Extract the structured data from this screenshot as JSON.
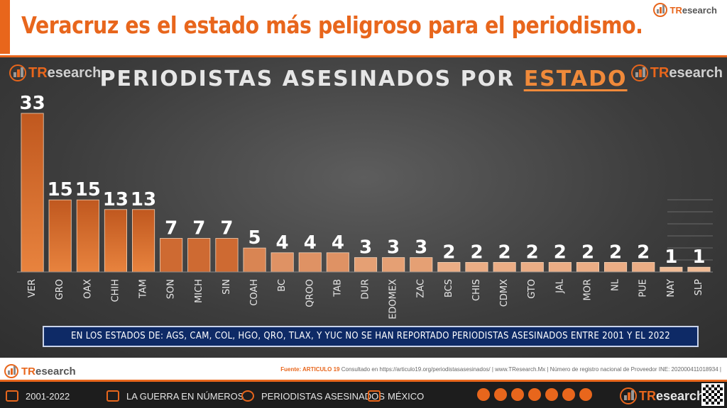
{
  "headline": "Veracruz es el estado más peligroso para el periodismo.",
  "brand": {
    "prefix": "TR",
    "suffix": "esearch"
  },
  "chart_data": {
    "type": "bar",
    "title_main": "PERIODISTAS ASESINADOS POR",
    "title_highlight": "ESTADO",
    "categories": [
      "VER",
      "GRO",
      "OAX",
      "CHIH",
      "TAM",
      "SON",
      "MICH",
      "SIN",
      "COAH",
      "BC",
      "QROO",
      "TAB",
      "DUR",
      "EDOMEX",
      "ZAC",
      "BCS",
      "CHIS",
      "CDMX",
      "GTO",
      "JAL",
      "MOR",
      "NL",
      "PUE",
      "NAY",
      "SLP"
    ],
    "values": [
      33,
      15,
      15,
      13,
      13,
      7,
      7,
      7,
      5,
      4,
      4,
      4,
      3,
      3,
      3,
      2,
      2,
      2,
      2,
      2,
      2,
      2,
      2,
      1,
      1
    ],
    "ylim": [
      0,
      33
    ],
    "grid": false,
    "legend": "none"
  },
  "note": "EN LOS ESTADOS DE: AGS, CAM, COL, HGO, QRO, TLAX, Y YUC NO SE HAN REPORTADO PERIODISTAS ASESINADOS ENTRE 2001 Y EL 2022",
  "source": {
    "label": "Fuente: ARTICULO 19",
    "text": "Consultado en https://articulo19.org/periodistasasesinados/ | www.TResearch.Mx | Número de registro nacional de Proveedor INE: 202000411018934 |"
  },
  "footer": {
    "items": [
      "2001-2022",
      "LA GUERRA EN NÚMEROS",
      "PERIODISTAS ASESINADOS",
      "MÉXICO"
    ]
  },
  "colors": {
    "accent": "#e8661c",
    "bar_top": "#c0581f",
    "bar_light": "#f6c8a6",
    "note_bg": "#0e2a66"
  },
  "icons": [
    "calendar-icon",
    "chart-icon",
    "info-icon",
    "map-icon",
    "globe-icon",
    "whatsapp-icon",
    "mail-icon",
    "twitter-icon",
    "facebook-icon",
    "linkedin-icon",
    "youtube-icon",
    "qr-code"
  ]
}
